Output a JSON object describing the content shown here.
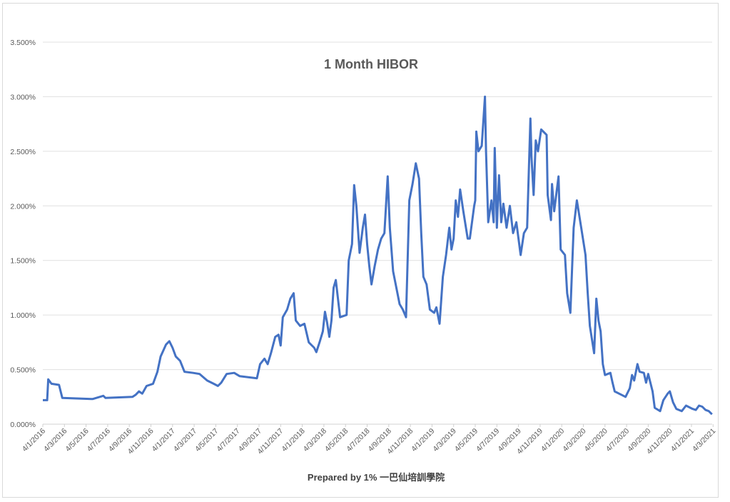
{
  "chart_data": {
    "type": "line",
    "title": "1 Month HIBOR",
    "footer": "Prepared by  1% 一巴仙培訓學院",
    "xlabel": "",
    "ylabel": "",
    "x_unit": "months since 4/1/2016 (d/m/yyyy)",
    "ylim": [
      0,
      3.5
    ],
    "yticks": [
      "0.000%",
      "0.500%",
      "1.000%",
      "1.500%",
      "2.000%",
      "2.500%",
      "3.000%",
      "3.500%"
    ],
    "ytick_values": [
      0,
      0.5,
      1,
      1.5,
      2,
      2.5,
      3,
      3.5
    ],
    "xticks": [
      "4/1/2016",
      "4/3/2016",
      "4/5/2016",
      "4/7/2016",
      "4/9/2016",
      "4/11/2016",
      "4/1/2017",
      "4/3/2017",
      "4/5/2017",
      "4/7/2017",
      "4/9/2017",
      "4/11/2017",
      "4/1/2018",
      "4/3/2018",
      "4/5/2018",
      "4/7/2018",
      "4/9/2018",
      "4/11/2018",
      "4/1/2019",
      "4/3/2019",
      "4/5/2019",
      "4/7/2019",
      "4/9/2019",
      "4/11/2019",
      "4/1/2020",
      "4/3/2020",
      "4/5/2020",
      "4/7/2020",
      "4/9/2020",
      "4/11/2020",
      "4/1/2021",
      "4/3/2021"
    ],
    "xlim": [
      0,
      62
    ],
    "grid": true,
    "legend": "none",
    "series": [
      {
        "name": "1 Month HIBOR (%)",
        "color": "#4472c4",
        "points": [
          [
            0,
            0.22
          ],
          [
            0.4,
            0.22
          ],
          [
            0.5,
            0.41
          ],
          [
            0.8,
            0.37
          ],
          [
            1.5,
            0.36
          ],
          [
            1.8,
            0.24
          ],
          [
            4.6,
            0.23
          ],
          [
            5.6,
            0.26
          ],
          [
            5.8,
            0.24
          ],
          [
            8.3,
            0.25
          ],
          [
            8.6,
            0.27
          ],
          [
            8.9,
            0.3
          ],
          [
            9.2,
            0.28
          ],
          [
            9.6,
            0.35
          ],
          [
            10.2,
            0.37
          ],
          [
            10.6,
            0.48
          ],
          [
            10.9,
            0.62
          ],
          [
            11.4,
            0.73
          ],
          [
            11.7,
            0.76
          ],
          [
            12.0,
            0.7
          ],
          [
            12.3,
            0.62
          ],
          [
            12.7,
            0.58
          ],
          [
            13.1,
            0.48
          ],
          [
            13.9,
            0.47
          ],
          [
            14.5,
            0.46
          ],
          [
            15.2,
            0.4
          ],
          [
            15.8,
            0.37
          ],
          [
            16.2,
            0.35
          ],
          [
            16.5,
            0.38
          ],
          [
            17.0,
            0.46
          ],
          [
            17.7,
            0.47
          ],
          [
            18.2,
            0.44
          ],
          [
            19.8,
            0.42
          ],
          [
            20.1,
            0.55
          ],
          [
            20.5,
            0.6
          ],
          [
            20.8,
            0.55
          ],
          [
            21.1,
            0.65
          ],
          [
            21.5,
            0.8
          ],
          [
            21.8,
            0.82
          ],
          [
            22.0,
            0.72
          ],
          [
            22.2,
            0.98
          ],
          [
            22.6,
            1.05
          ],
          [
            22.9,
            1.15
          ],
          [
            23.2,
            1.2
          ],
          [
            23.4,
            0.95
          ],
          [
            23.8,
            0.9
          ],
          [
            24.2,
            0.92
          ],
          [
            24.6,
            0.75
          ],
          [
            25.1,
            0.7
          ],
          [
            25.3,
            0.66
          ],
          [
            25.6,
            0.75
          ],
          [
            25.9,
            0.85
          ],
          [
            26.1,
            1.03
          ],
          [
            26.3,
            0.93
          ],
          [
            26.5,
            0.8
          ],
          [
            26.7,
            0.95
          ],
          [
            26.9,
            1.25
          ],
          [
            27.1,
            1.32
          ],
          [
            27.3,
            1.15
          ],
          [
            27.5,
            0.98
          ],
          [
            28.1,
            1.0
          ],
          [
            28.3,
            1.5
          ],
          [
            28.6,
            1.65
          ],
          [
            28.8,
            2.19
          ],
          [
            29.0,
            2.0
          ],
          [
            29.3,
            1.57
          ],
          [
            29.6,
            1.8
          ],
          [
            29.8,
            1.92
          ],
          [
            30.0,
            1.65
          ],
          [
            30.2,
            1.45
          ],
          [
            30.4,
            1.28
          ],
          [
            30.7,
            1.45
          ],
          [
            31.0,
            1.6
          ],
          [
            31.3,
            1.7
          ],
          [
            31.6,
            1.75
          ],
          [
            31.9,
            2.27
          ],
          [
            32.1,
            1.8
          ],
          [
            32.4,
            1.4
          ],
          [
            33.0,
            1.1
          ],
          [
            33.3,
            1.05
          ],
          [
            33.6,
            0.98
          ],
          [
            33.9,
            2.05
          ],
          [
            34.2,
            2.2
          ],
          [
            34.5,
            2.39
          ],
          [
            34.8,
            2.25
          ],
          [
            35.0,
            1.75
          ],
          [
            35.2,
            1.35
          ],
          [
            35.5,
            1.28
          ],
          [
            35.8,
            1.05
          ],
          [
            36.2,
            1.02
          ],
          [
            36.4,
            1.07
          ],
          [
            36.7,
            0.92
          ],
          [
            37.0,
            1.35
          ],
          [
            37.3,
            1.55
          ],
          [
            37.6,
            1.8
          ],
          [
            37.8,
            1.6
          ],
          [
            38.0,
            1.7
          ],
          [
            38.2,
            2.05
          ],
          [
            38.4,
            1.9
          ],
          [
            38.6,
            2.15
          ],
          [
            38.9,
            1.95
          ],
          [
            39.3,
            1.7
          ],
          [
            39.5,
            1.7
          ],
          [
            39.9,
            2.0
          ],
          [
            40.0,
            2.05
          ],
          [
            40.1,
            2.68
          ],
          [
            40.3,
            2.5
          ],
          [
            40.6,
            2.55
          ],
          [
            40.9,
            3.0
          ],
          [
            41.0,
            2.5
          ],
          [
            41.2,
            1.85
          ],
          [
            41.5,
            2.05
          ],
          [
            41.7,
            1.85
          ],
          [
            41.8,
            2.53
          ],
          [
            42.0,
            1.8
          ],
          [
            42.2,
            2.28
          ],
          [
            42.4,
            1.85
          ],
          [
            42.6,
            2.02
          ],
          [
            42.9,
            1.8
          ],
          [
            43.2,
            2.0
          ],
          [
            43.5,
            1.75
          ],
          [
            43.8,
            1.85
          ],
          [
            44.2,
            1.55
          ],
          [
            44.5,
            1.75
          ],
          [
            44.8,
            1.8
          ],
          [
            45.1,
            2.8
          ],
          [
            45.2,
            2.45
          ],
          [
            45.4,
            2.1
          ],
          [
            45.6,
            2.6
          ],
          [
            45.8,
            2.5
          ],
          [
            46.1,
            2.7
          ],
          [
            46.6,
            2.65
          ],
          [
            46.7,
            2.1
          ],
          [
            47.0,
            1.87
          ],
          [
            47.1,
            2.2
          ],
          [
            47.3,
            1.95
          ],
          [
            47.7,
            2.27
          ],
          [
            47.9,
            1.6
          ],
          [
            48.3,
            1.55
          ],
          [
            48.5,
            1.2
          ],
          [
            48.8,
            1.02
          ],
          [
            49.1,
            1.8
          ],
          [
            49.4,
            2.05
          ],
          [
            49.8,
            1.8
          ],
          [
            50.2,
            1.55
          ],
          [
            50.4,
            1.2
          ],
          [
            50.6,
            0.9
          ],
          [
            51.0,
            0.65
          ],
          [
            51.2,
            1.15
          ],
          [
            51.4,
            0.95
          ],
          [
            51.6,
            0.85
          ],
          [
            51.8,
            0.55
          ],
          [
            52.0,
            0.45
          ],
          [
            52.5,
            0.47
          ],
          [
            52.7,
            0.38
          ],
          [
            52.9,
            0.3
          ],
          [
            53.5,
            0.27
          ],
          [
            53.9,
            0.25
          ],
          [
            54.3,
            0.33
          ],
          [
            54.5,
            0.45
          ],
          [
            54.7,
            0.4
          ],
          [
            55.0,
            0.55
          ],
          [
            55.2,
            0.48
          ],
          [
            55.6,
            0.47
          ],
          [
            55.8,
            0.38
          ],
          [
            56.0,
            0.46
          ],
          [
            56.4,
            0.3
          ],
          [
            56.6,
            0.15
          ],
          [
            57.1,
            0.12
          ],
          [
            57.4,
            0.22
          ],
          [
            57.8,
            0.28
          ],
          [
            58.0,
            0.3
          ],
          [
            58.3,
            0.2
          ],
          [
            58.6,
            0.14
          ],
          [
            59.1,
            0.12
          ],
          [
            59.5,
            0.17
          ],
          [
            60.1,
            0.14
          ],
          [
            60.4,
            0.13
          ],
          [
            60.7,
            0.17
          ],
          [
            61.0,
            0.16
          ],
          [
            61.3,
            0.13
          ],
          [
            61.6,
            0.12
          ],
          [
            61.9,
            0.09
          ]
        ]
      }
    ]
  }
}
